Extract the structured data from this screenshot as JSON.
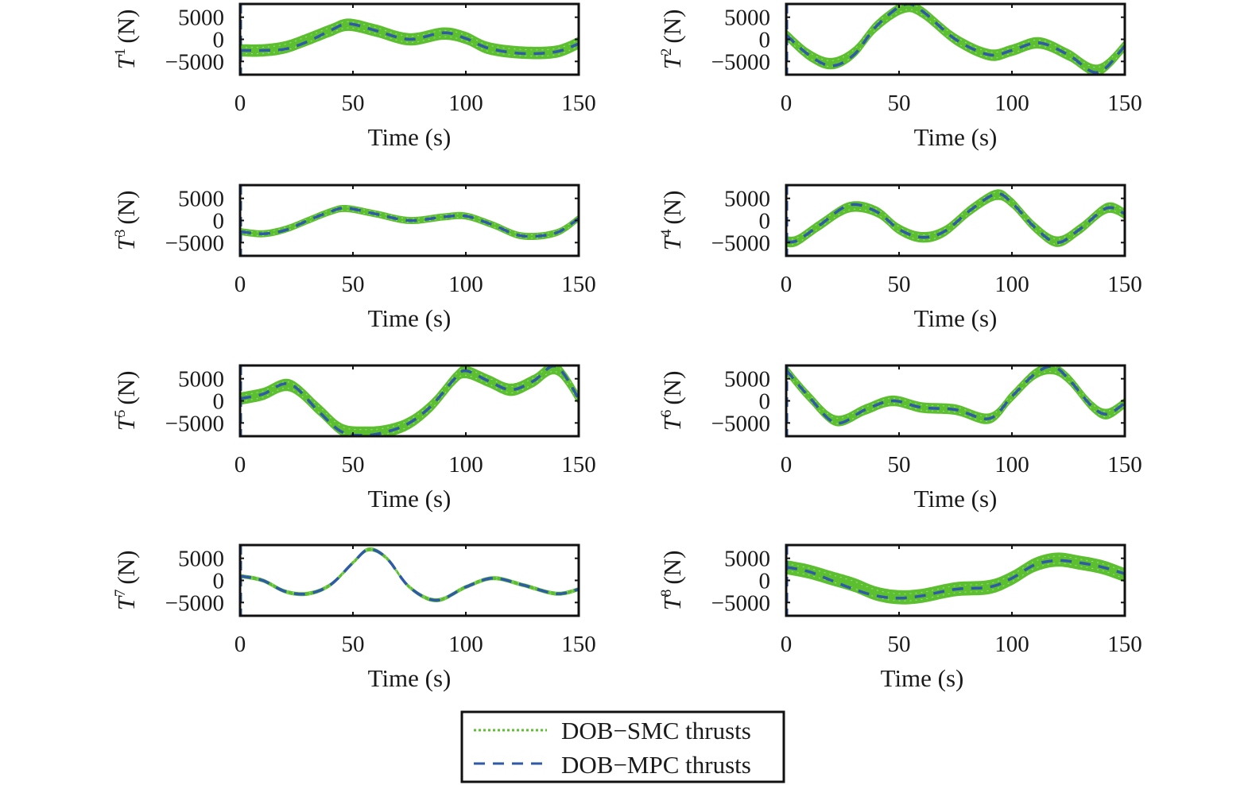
{
  "figure": {
    "legend": {
      "placement": "bottom-center",
      "entries": [
        {
          "label": "DOB−SMC thrusts",
          "style": "dotted",
          "color": "#5cbf2f"
        },
        {
          "label": "DOB−MPC thrusts",
          "style": "dashed",
          "color": "#2f5aa8"
        }
      ]
    },
    "colors": {
      "smc": "#5cbf2f",
      "mpc": "#2f5aa8",
      "axis": "#111111"
    }
  },
  "chart_data": [
    {
      "type": "line",
      "panel": "T1",
      "ylabel_base": "T",
      "ylabel_sup": "1",
      "ylabel_unit": "(N)",
      "xlabel": "Time (s)",
      "xlim": [
        0,
        150
      ],
      "ylim": [
        -8000,
        8000
      ],
      "xticks": [
        "0",
        "50",
        "100",
        "150"
      ],
      "yticks": [
        "5000",
        "0",
        "−5000"
      ],
      "ytick_values": [
        5000,
        0,
        -5000
      ],
      "series": [
        {
          "name": "DOB−MPC thrusts",
          "x": [
            0,
            10,
            20,
            30,
            40,
            48,
            60,
            75,
            90,
            100,
            110,
            125,
            140,
            150
          ],
          "y": [
            -2500,
            -2500,
            -2200,
            -500,
            2000,
            3500,
            2000,
            0,
            1500,
            200,
            -2000,
            -3200,
            -2800,
            -1000
          ]
        },
        {
          "name": "DOB−SMC thrusts",
          "band_width": 2800,
          "x": [
            0,
            10,
            20,
            30,
            40,
            48,
            60,
            75,
            90,
            100,
            110,
            125,
            140,
            150
          ],
          "y": [
            -2500,
            -2500,
            -1800,
            0,
            2000,
            3300,
            2000,
            0,
            1300,
            300,
            -2000,
            -3000,
            -2800,
            -800
          ]
        }
      ]
    },
    {
      "type": "line",
      "panel": "T2",
      "ylabel_base": "T",
      "ylabel_sup": "2",
      "ylabel_unit": "(N)",
      "xlabel": "Time (s)",
      "xlim": [
        0,
        150
      ],
      "ylim": [
        -8000,
        8000
      ],
      "xticks": [
        "0",
        "50",
        "100",
        "150"
      ],
      "yticks": [
        "5000",
        "0",
        "−5000"
      ],
      "ytick_values": [
        5000,
        0,
        -5000
      ],
      "series": [
        {
          "name": "DOB−MPC thrusts",
          "x": [
            0,
            10,
            20,
            30,
            40,
            52,
            60,
            75,
            90,
            100,
            112,
            125,
            138,
            150
          ],
          "y": [
            1000,
            -3500,
            -6000,
            -3500,
            3000,
            7800,
            6500,
            0,
            -3500,
            -2500,
            -800,
            -3500,
            -7500,
            -1500
          ]
        },
        {
          "name": "DOB−SMC thrusts",
          "band_width": 2600,
          "x": [
            0,
            10,
            20,
            30,
            40,
            52,
            60,
            75,
            90,
            100,
            112,
            125,
            138,
            150
          ],
          "y": [
            1000,
            -3500,
            -5500,
            -3000,
            3000,
            7200,
            6200,
            0,
            -3500,
            -2500,
            -800,
            -3500,
            -7000,
            -1500
          ]
        }
      ]
    },
    {
      "type": "line",
      "panel": "T3",
      "ylabel_base": "T",
      "ylabel_sup": "3",
      "ylabel_unit": "(N)",
      "xlabel": "Time (s)",
      "xlim": [
        0,
        150
      ],
      "ylim": [
        -8000,
        8000
      ],
      "xticks": [
        "0",
        "50",
        "100",
        "150"
      ],
      "yticks": [
        "5000",
        "0",
        "−5000"
      ],
      "ytick_values": [
        5000,
        0,
        -5000
      ],
      "series": [
        {
          "name": "DOB−MPC thrusts",
          "x": [
            0,
            10,
            20,
            30,
            40,
            47,
            60,
            75,
            90,
            100,
            112,
            125,
            140,
            150
          ],
          "y": [
            -2500,
            -3000,
            -2200,
            0,
            2000,
            2800,
            1500,
            0,
            800,
            1000,
            -1000,
            -3500,
            -2800,
            500
          ]
        },
        {
          "name": "DOB−SMC thrusts",
          "band_width": 1600,
          "x": [
            0,
            10,
            20,
            30,
            40,
            47,
            60,
            75,
            90,
            100,
            112,
            125,
            140,
            150
          ],
          "y": [
            -2500,
            -3000,
            -2000,
            0,
            2000,
            2700,
            1500,
            0,
            800,
            1000,
            -1000,
            -3500,
            -2800,
            500
          ]
        }
      ]
    },
    {
      "type": "line",
      "panel": "T4",
      "ylabel_base": "T",
      "ylabel_sup": "4",
      "ylabel_unit": "(N)",
      "xlabel": "Time (s)",
      "xlim": [
        0,
        150
      ],
      "ylim": [
        -8000,
        8000
      ],
      "xticks": [
        "0",
        "50",
        "100",
        "150"
      ],
      "yticks": [
        "5000",
        "0",
        "−5000"
      ],
      "ytick_values": [
        5000,
        0,
        -5000
      ],
      "series": [
        {
          "name": "DOB−MPC thrusts",
          "x": [
            0,
            5,
            15,
            28,
            40,
            50,
            60,
            70,
            82,
            93,
            100,
            110,
            120,
            130,
            142,
            150
          ],
          "y": [
            -4800,
            -4500,
            -1000,
            3500,
            2000,
            -2000,
            -3800,
            -2500,
            2500,
            6000,
            4000,
            -1500,
            -5000,
            -2000,
            2800,
            1500
          ]
        },
        {
          "name": "DOB−SMC thrusts",
          "band_width": 2400,
          "x": [
            0,
            5,
            15,
            28,
            40,
            50,
            60,
            70,
            82,
            93,
            100,
            110,
            120,
            130,
            142,
            150
          ],
          "y": [
            -4800,
            -4500,
            -1000,
            3000,
            2000,
            -2000,
            -3800,
            -2500,
            2500,
            5800,
            4000,
            -1500,
            -4800,
            -2000,
            2800,
            1500
          ]
        }
      ]
    },
    {
      "type": "line",
      "panel": "T5",
      "ylabel_base": "T",
      "ylabel_sup": "5",
      "ylabel_unit": "(N)",
      "xlabel": "Time (s)",
      "xlim": [
        0,
        150
      ],
      "ylim": [
        -8000,
        8000
      ],
      "xticks": [
        "0",
        "50",
        "100",
        "150"
      ],
      "yticks": [
        "5000",
        "0",
        "−5000"
      ],
      "ytick_values": [
        5000,
        0,
        -5000
      ],
      "series": [
        {
          "name": "DOB−MPC thrusts",
          "x": [
            0,
            10,
            22,
            35,
            45,
            55,
            65,
            75,
            85,
            95,
            100,
            110,
            120,
            130,
            140,
            150
          ],
          "y": [
            500,
            1500,
            3800,
            -2500,
            -7000,
            -7800,
            -7000,
            -5000,
            -1000,
            5000,
            6800,
            4500,
            2500,
            4500,
            7800,
            500
          ]
        },
        {
          "name": "DOB−SMC thrusts",
          "band_width": 2800,
          "x": [
            0,
            10,
            22,
            35,
            45,
            55,
            65,
            75,
            85,
            95,
            100,
            110,
            120,
            130,
            140,
            150
          ],
          "y": [
            500,
            1500,
            3500,
            -2000,
            -6500,
            -7200,
            -6800,
            -5000,
            -1000,
            5000,
            6500,
            4500,
            2500,
            4500,
            7300,
            500
          ]
        }
      ]
    },
    {
      "type": "line",
      "panel": "T6",
      "ylabel_base": "T",
      "ylabel_sup": "6",
      "ylabel_unit": "(N)",
      "xlabel": "Time (s)",
      "xlim": [
        0,
        150
      ],
      "ylim": [
        -8000,
        8000
      ],
      "xticks": [
        "0",
        "50",
        "100",
        "150"
      ],
      "yticks": [
        "5000",
        "0",
        "−5000"
      ],
      "ytick_values": [
        5000,
        0,
        -5000
      ],
      "series": [
        {
          "name": "DOB−MPC thrusts",
          "x": [
            0,
            10,
            22,
            35,
            47,
            60,
            75,
            90,
            100,
            110,
            118,
            125,
            135,
            142,
            150
          ],
          "y": [
            7000,
            1000,
            -5000,
            -2000,
            0,
            -1500,
            -2000,
            -4000,
            1000,
            6000,
            7800,
            5000,
            -1000,
            -3000,
            -500
          ]
        },
        {
          "name": "DOB−SMC thrusts",
          "band_width": 2400,
          "x": [
            0,
            10,
            22,
            35,
            47,
            60,
            75,
            90,
            100,
            110,
            118,
            125,
            135,
            142,
            150
          ],
          "y": [
            7000,
            1000,
            -4500,
            -2000,
            0,
            -1500,
            -2000,
            -4000,
            1000,
            6000,
            7200,
            5000,
            -1000,
            -3000,
            -500
          ]
        }
      ]
    },
    {
      "type": "line",
      "panel": "T7",
      "ylabel_base": "T",
      "ylabel_sup": "7",
      "ylabel_unit": "(N)",
      "xlabel": "Time (s)",
      "xlim": [
        0,
        150
      ],
      "ylim": [
        -8000,
        8000
      ],
      "xticks": [
        "0",
        "50",
        "100",
        "150"
      ],
      "yticks": [
        "5000",
        "0",
        "−5000"
      ],
      "ytick_values": [
        5000,
        0,
        -5000
      ],
      "series": [
        {
          "name": "DOB−MPC thrusts",
          "x": [
            0,
            10,
            20,
            30,
            40,
            50,
            57,
            65,
            75,
            87,
            100,
            112,
            125,
            140,
            150
          ],
          "y": [
            1000,
            0,
            -2500,
            -3000,
            -1000,
            4000,
            7000,
            5000,
            -1500,
            -4500,
            -1500,
            500,
            -1000,
            -3000,
            -2000
          ]
        },
        {
          "name": "DOB−SMC thrusts",
          "band_width": 900,
          "x": [
            0,
            10,
            20,
            30,
            40,
            50,
            57,
            65,
            75,
            87,
            100,
            112,
            125,
            140,
            150
          ],
          "y": [
            1000,
            0,
            -2500,
            -3000,
            -1000,
            4000,
            7000,
            5000,
            -1500,
            -4500,
            -1500,
            500,
            -1000,
            -3000,
            -2000
          ]
        }
      ]
    },
    {
      "type": "line",
      "panel": "T8",
      "ylabel_base": "T",
      "ylabel_sup": "8",
      "ylabel_unit": "(N)",
      "xlabel": "Time (s)",
      "xlim": [
        0,
        150
      ],
      "ylim": [
        -8000,
        8000
      ],
      "xticks": [
        "0",
        "50",
        "100",
        "150"
      ],
      "yticks": [
        "5000",
        "0",
        "−5000"
      ],
      "ytick_values": [
        5000,
        0,
        -5000
      ],
      "series": [
        {
          "name": "DOB−MPC thrusts",
          "x": [
            0,
            10,
            20,
            30,
            40,
            50,
            60,
            75,
            90,
            100,
            110,
            120,
            130,
            140,
            150
          ],
          "y": [
            3000,
            2000,
            0,
            -2000,
            -3500,
            -4000,
            -3500,
            -2000,
            -1500,
            500,
            3500,
            4500,
            4000,
            3000,
            1500
          ]
        },
        {
          "name": "DOB−SMC thrusts",
          "band_width": 3200,
          "x": [
            0,
            10,
            20,
            30,
            40,
            50,
            60,
            75,
            90,
            100,
            110,
            120,
            130,
            140,
            150
          ],
          "y": [
            3000,
            2000,
            500,
            -1000,
            -3000,
            -3800,
            -3500,
            -2000,
            -1500,
            500,
            3500,
            4700,
            4000,
            3000,
            1200
          ]
        }
      ]
    }
  ]
}
